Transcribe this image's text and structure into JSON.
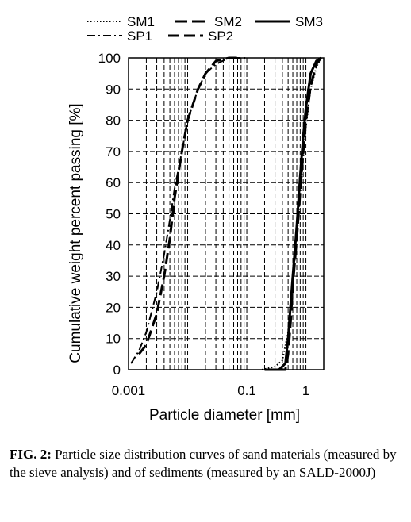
{
  "chart_data": {
    "type": "line",
    "xlabel": "Particle diameter [mm]",
    "ylabel": "Cumulative weight percent passing [%]",
    "xscale": "log",
    "xlim": [
      0.001,
      2
    ],
    "ylim": [
      0,
      100
    ],
    "x_ticks": [
      "0.001",
      "0.1",
      "1"
    ],
    "y_ticks": [
      "0",
      "10",
      "20",
      "30",
      "40",
      "50",
      "60",
      "70",
      "80",
      "90",
      "100"
    ],
    "grid": "dashed, log-decade vertical lines and 10% horizontal lines",
    "legend_position": "top",
    "series": [
      {
        "name": "SM1",
        "dash": "dotted",
        "x": [
          0.18,
          0.3,
          0.4,
          0.5,
          0.6,
          0.7,
          0.8,
          0.9,
          1.0,
          1.2,
          1.5,
          1.8
        ],
        "y": [
          0,
          1,
          3,
          12,
          28,
          42,
          56,
          68,
          78,
          90,
          97,
          100
        ]
      },
      {
        "name": "SM2",
        "dash": "long-dash",
        "x": [
          0.3,
          0.45,
          0.5,
          0.55,
          0.6,
          0.7,
          0.8,
          0.9,
          1.0,
          1.2,
          1.5,
          1.8
        ],
        "y": [
          0,
          0,
          5,
          15,
          27,
          42,
          57,
          70,
          80,
          91,
          98,
          100
        ]
      },
      {
        "name": "SM3",
        "dash": "solid",
        "x": [
          0.2,
          0.35,
          0.45,
          0.5,
          0.6,
          0.7,
          0.8,
          0.9,
          1.0,
          1.2,
          1.5,
          1.8
        ],
        "y": [
          0,
          0,
          2,
          10,
          30,
          46,
          62,
          75,
          84,
          95,
          99,
          100
        ]
      },
      {
        "name": "SP1",
        "dash": "dash-dot",
        "x": [
          0.0011,
          0.0015,
          0.002,
          0.003,
          0.004,
          0.005,
          0.006,
          0.008,
          0.01,
          0.015,
          0.02,
          0.03,
          0.05,
          0.08,
          0.1
        ],
        "y": [
          2,
          6,
          12,
          25,
          37,
          48,
          58,
          70,
          80,
          90,
          95,
          98,
          100,
          100,
          100
        ]
      },
      {
        "name": "SP2",
        "dash": "dash",
        "x": [
          0.0015,
          0.002,
          0.003,
          0.004,
          0.005,
          0.006,
          0.008,
          0.01,
          0.015,
          0.02,
          0.03,
          0.05,
          0.08
        ],
        "y": [
          5,
          8,
          18,
          30,
          42,
          55,
          70,
          80,
          90,
          95,
          99,
          100,
          100
        ]
      }
    ]
  },
  "caption": {
    "label": "FIG. 2:",
    "text": "Particle size distribution curves of sand materials (measured by the sieve analysis) and of sediments (measured by an SALD-2000J)"
  }
}
